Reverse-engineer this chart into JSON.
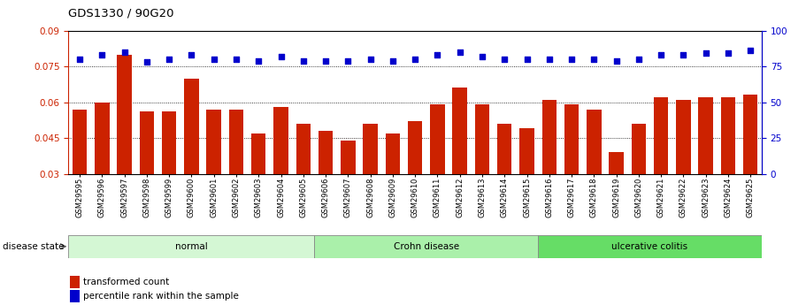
{
  "title": "GDS1330 / 90G20",
  "samples": [
    "GSM29595",
    "GSM29596",
    "GSM29597",
    "GSM29598",
    "GSM29599",
    "GSM29600",
    "GSM29601",
    "GSM29602",
    "GSM29603",
    "GSM29604",
    "GSM29605",
    "GSM29606",
    "GSM29607",
    "GSM29608",
    "GSM29609",
    "GSM29610",
    "GSM29611",
    "GSM29612",
    "GSM29613",
    "GSM29614",
    "GSM29615",
    "GSM29616",
    "GSM29617",
    "GSM29618",
    "GSM29619",
    "GSM29620",
    "GSM29621",
    "GSM29622",
    "GSM29623",
    "GSM29624",
    "GSM29625"
  ],
  "bar_values": [
    0.057,
    0.06,
    0.08,
    0.056,
    0.056,
    0.07,
    0.057,
    0.057,
    0.047,
    0.058,
    0.051,
    0.048,
    0.044,
    0.051,
    0.047,
    0.052,
    0.059,
    0.066,
    0.059,
    0.051,
    0.049,
    0.061,
    0.059,
    0.057,
    0.039,
    0.051,
    0.062,
    0.061,
    0.062,
    0.062,
    0.063
  ],
  "percentile_values": [
    80,
    83,
    85,
    78,
    80,
    83,
    80,
    80,
    79,
    82,
    79,
    79,
    79,
    80,
    79,
    80,
    83,
    85,
    82,
    80,
    80,
    80,
    80,
    80,
    79,
    80,
    83,
    83,
    84,
    84,
    86
  ],
  "groups": [
    {
      "label": "normal",
      "start": 0,
      "end": 11,
      "color": "#d4f7d4"
    },
    {
      "label": "Crohn disease",
      "start": 11,
      "end": 21,
      "color": "#aaf0aa"
    },
    {
      "label": "ulcerative colitis",
      "start": 21,
      "end": 31,
      "color": "#66dd66"
    }
  ],
  "bar_color": "#cc2200",
  "dot_color": "#0000cc",
  "ylim_left": [
    0.03,
    0.09
  ],
  "ylim_right": [
    0,
    100
  ],
  "yticks_left": [
    0.03,
    0.045,
    0.06,
    0.075,
    0.09
  ],
  "yticks_right": [
    0,
    25,
    50,
    75,
    100
  ],
  "grid_lines": [
    0.045,
    0.06,
    0.075
  ],
  "background_color": "#ffffff",
  "disease_state_label": "disease state",
  "legend_bar": "transformed count",
  "legend_dot": "percentile rank within the sample",
  "bar_bottom": 0.03
}
